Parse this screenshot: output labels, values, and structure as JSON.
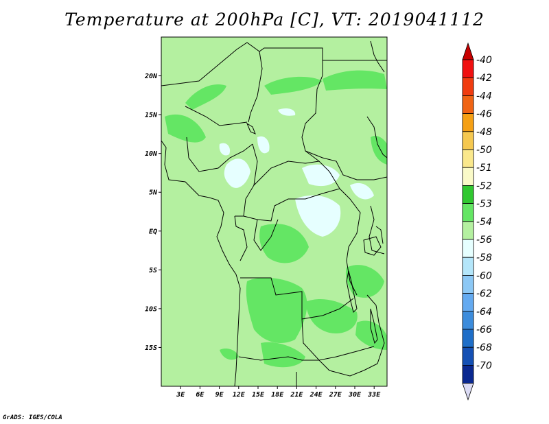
{
  "title": "Temperature at 200hPa [C], VT: 2019041112",
  "credit": "GrADS: IGES/COLA",
  "map": {
    "lon_range": [
      0,
      35
    ],
    "lat_range": [
      -20,
      25
    ],
    "background_color": "#b4f0a0",
    "x_ticks": [
      {
        "lon": 3,
        "label": "3E"
      },
      {
        "lon": 6,
        "label": "6E"
      },
      {
        "lon": 9,
        "label": "9E"
      },
      {
        "lon": 12,
        "label": "12E"
      },
      {
        "lon": 15,
        "label": "15E"
      },
      {
        "lon": 18,
        "label": "18E"
      },
      {
        "lon": 21,
        "label": "21E"
      },
      {
        "lon": 24,
        "label": "24E"
      },
      {
        "lon": 27,
        "label": "27E"
      },
      {
        "lon": 30,
        "label": "30E"
      },
      {
        "lon": 33,
        "label": "33E"
      }
    ],
    "y_ticks": [
      {
        "lat": 20,
        "label": "20N"
      },
      {
        "lat": 15,
        "label": "15N"
      },
      {
        "lat": 10,
        "label": "10N"
      },
      {
        "lat": 5,
        "label": "5N"
      },
      {
        "lat": 0,
        "label": "EQ"
      },
      {
        "lat": -5,
        "label": "5S"
      },
      {
        "lat": -10,
        "label": "10S"
      },
      {
        "lat": -15,
        "label": "15S"
      }
    ]
  },
  "colorbar": {
    "levels": [
      {
        "label": "-40",
        "color": "#f01010"
      },
      {
        "label": "-42",
        "color": "#f03c10"
      },
      {
        "label": "-44",
        "color": "#f06414"
      },
      {
        "label": "-46",
        "color": "#f5a014"
      },
      {
        "label": "-48",
        "color": "#f5c850"
      },
      {
        "label": "-50",
        "color": "#fae88c"
      },
      {
        "label": "-51",
        "color": "#fafac8"
      },
      {
        "label": "-52",
        "color": "#30c830"
      },
      {
        "label": "-53",
        "color": "#64e664"
      },
      {
        "label": "-54",
        "color": "#b4f0a0"
      },
      {
        "label": "-56",
        "color": "#e6ffff"
      },
      {
        "label": "-58",
        "color": "#b4e6fa"
      },
      {
        "label": "-60",
        "color": "#8cc8f5"
      },
      {
        "label": "-62",
        "color": "#64aaf0"
      },
      {
        "label": "-64",
        "color": "#3c8cdc"
      },
      {
        "label": "-66",
        "color": "#1e6ec8"
      },
      {
        "label": "-68",
        "color": "#1450b4"
      },
      {
        "label": "-70",
        "color": "#0a2890"
      }
    ],
    "top_arrow_color": "#c80000",
    "bottom_arrow_color": "#dcdcf5",
    "bottom_color": "#0a0a64"
  }
}
